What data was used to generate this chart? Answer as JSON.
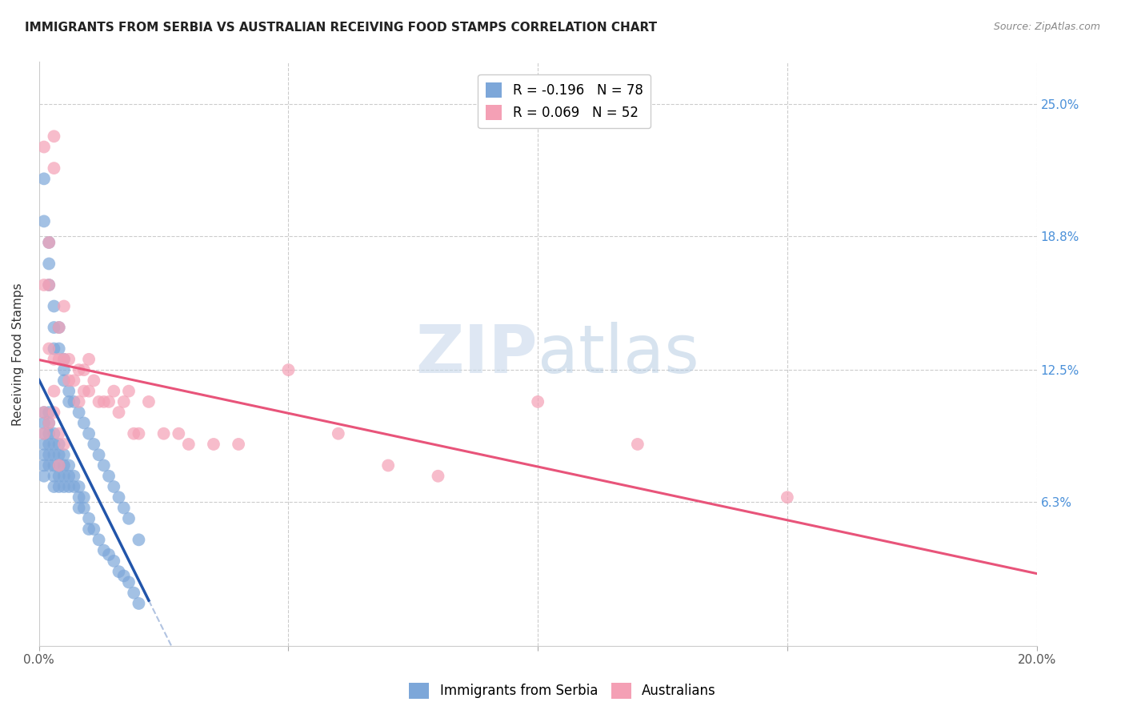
{
  "title": "IMMIGRANTS FROM SERBIA VS AUSTRALIAN RECEIVING FOOD STAMPS CORRELATION CHART",
  "source": "Source: ZipAtlas.com",
  "ylabel": "Receiving Food Stamps",
  "ytick_labels": [
    "25.0%",
    "18.8%",
    "12.5%",
    "6.3%"
  ],
  "ytick_values": [
    0.25,
    0.188,
    0.125,
    0.063
  ],
  "xlim": [
    0.0,
    0.2
  ],
  "ylim": [
    -0.005,
    0.27
  ],
  "serbia_color": "#7da7d9",
  "australia_color": "#f4a0b5",
  "serbia_line_color": "#2255aa",
  "australia_line_color": "#e8547a",
  "legend_serbia_label": "R = -0.196   N = 78",
  "legend_australia_label": "R = 0.069   N = 52",
  "serbia_x": [
    0.001,
    0.001,
    0.001,
    0.001,
    0.001,
    0.001,
    0.001,
    0.002,
    0.002,
    0.002,
    0.002,
    0.002,
    0.002,
    0.003,
    0.003,
    0.003,
    0.003,
    0.003,
    0.003,
    0.004,
    0.004,
    0.004,
    0.004,
    0.004,
    0.005,
    0.005,
    0.005,
    0.005,
    0.006,
    0.006,
    0.006,
    0.007,
    0.007,
    0.008,
    0.008,
    0.008,
    0.009,
    0.009,
    0.01,
    0.01,
    0.011,
    0.012,
    0.013,
    0.014,
    0.015,
    0.016,
    0.017,
    0.018,
    0.019,
    0.02,
    0.001,
    0.001,
    0.002,
    0.002,
    0.002,
    0.003,
    0.003,
    0.003,
    0.004,
    0.004,
    0.005,
    0.005,
    0.005,
    0.006,
    0.006,
    0.007,
    0.008,
    0.009,
    0.01,
    0.011,
    0.012,
    0.013,
    0.014,
    0.015,
    0.016,
    0.017,
    0.018,
    0.02
  ],
  "serbia_y": [
    0.105,
    0.1,
    0.095,
    0.09,
    0.085,
    0.08,
    0.075,
    0.105,
    0.1,
    0.095,
    0.09,
    0.085,
    0.08,
    0.095,
    0.09,
    0.085,
    0.08,
    0.075,
    0.07,
    0.09,
    0.085,
    0.08,
    0.075,
    0.07,
    0.085,
    0.08,
    0.075,
    0.07,
    0.08,
    0.075,
    0.07,
    0.075,
    0.07,
    0.07,
    0.065,
    0.06,
    0.065,
    0.06,
    0.055,
    0.05,
    0.05,
    0.045,
    0.04,
    0.038,
    0.035,
    0.03,
    0.028,
    0.025,
    0.02,
    0.015,
    0.195,
    0.215,
    0.185,
    0.175,
    0.165,
    0.155,
    0.145,
    0.135,
    0.145,
    0.135,
    0.13,
    0.125,
    0.12,
    0.115,
    0.11,
    0.11,
    0.105,
    0.1,
    0.095,
    0.09,
    0.085,
    0.08,
    0.075,
    0.07,
    0.065,
    0.06,
    0.055,
    0.045
  ],
  "australia_x": [
    0.001,
    0.001,
    0.002,
    0.002,
    0.002,
    0.003,
    0.003,
    0.003,
    0.004,
    0.004,
    0.005,
    0.005,
    0.006,
    0.006,
    0.007,
    0.008,
    0.008,
    0.009,
    0.009,
    0.01,
    0.01,
    0.011,
    0.012,
    0.013,
    0.014,
    0.015,
    0.016,
    0.017,
    0.018,
    0.019,
    0.02,
    0.022,
    0.025,
    0.028,
    0.03,
    0.035,
    0.04,
    0.05,
    0.06,
    0.07,
    0.08,
    0.1,
    0.12,
    0.15,
    0.001,
    0.001,
    0.002,
    0.003,
    0.003,
    0.004,
    0.004,
    0.005
  ],
  "australia_y": [
    0.23,
    0.165,
    0.185,
    0.165,
    0.135,
    0.235,
    0.22,
    0.13,
    0.145,
    0.13,
    0.155,
    0.13,
    0.13,
    0.12,
    0.12,
    0.125,
    0.11,
    0.125,
    0.115,
    0.13,
    0.115,
    0.12,
    0.11,
    0.11,
    0.11,
    0.115,
    0.105,
    0.11,
    0.115,
    0.095,
    0.095,
    0.11,
    0.095,
    0.095,
    0.09,
    0.09,
    0.09,
    0.125,
    0.095,
    0.08,
    0.075,
    0.11,
    0.09,
    0.065,
    0.105,
    0.095,
    0.1,
    0.115,
    0.105,
    0.095,
    0.08,
    0.09
  ]
}
